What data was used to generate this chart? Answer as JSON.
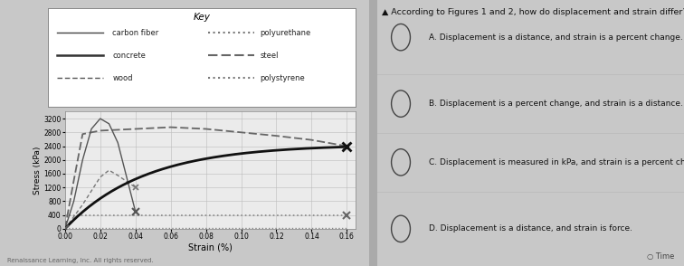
{
  "title_question": "According to Figures 1 and 2, how do displacement and strain differ?",
  "key_title": "Key",
  "ylabel": "Stress (kPa)",
  "xlabel": "Strain (%)",
  "yticks": [
    0,
    400,
    800,
    1200,
    1600,
    2000,
    2400,
    2800,
    3200
  ],
  "xticks": [
    0.0,
    0.02,
    0.04,
    0.06,
    0.08,
    0.1,
    0.12,
    0.14,
    0.16
  ],
  "xlim": [
    0.0,
    0.165
  ],
  "ylim": [
    0,
    3400
  ],
  "overall_bg": "#c8c8c8",
  "chart_bg": "#e8e8e8",
  "plot_bg": "#ebebeb",
  "right_bg": "#e0e0e0",
  "answer_choices": [
    "A. Displacement is a distance, and strain is a percent change.",
    "B. Displacement is a percent change, and strain is a distance.",
    "C. Displacement is measured in kPa, and strain is a percent change.",
    "D. Displacement is a distance, and strain is force."
  ],
  "credit": "Renaissance Learning, Inc. All rights reserved."
}
